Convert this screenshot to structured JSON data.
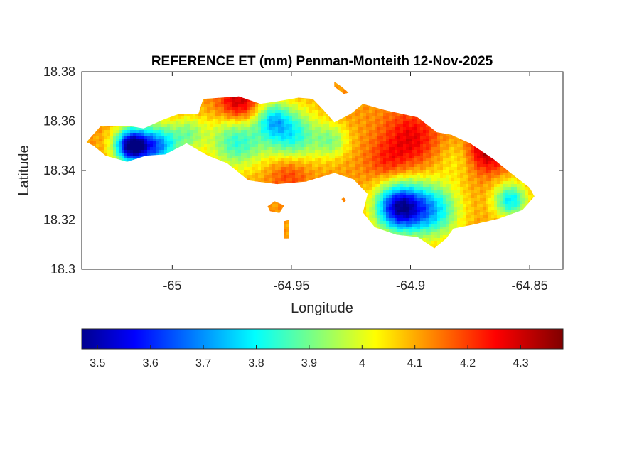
{
  "chart_data": {
    "type": "heatmap",
    "title": "REFERENCE ET (mm) Penman-Monteith 12-Nov-2025",
    "xlabel": "Longitude",
    "ylabel": "Latitude",
    "xlim": [
      -65.038,
      -64.836
    ],
    "ylim": [
      18.3,
      18.38
    ],
    "xticks": [
      -65,
      -64.95,
      -64.9,
      -64.85
    ],
    "xtick_labels": [
      "-65",
      "-64.95",
      "-64.9",
      "-64.85"
    ],
    "yticks": [
      18.3,
      18.32,
      18.34,
      18.36,
      18.38
    ],
    "ytick_labels": [
      "18.3",
      "18.32",
      "18.34",
      "18.36",
      "18.38"
    ],
    "grid": false,
    "colormap": "jet",
    "colorbar": {
      "location": "bottom",
      "range": [
        3.47,
        4.38
      ],
      "ticks": [
        3.5,
        3.6,
        3.7,
        3.8,
        3.9,
        4,
        4.1,
        4.2,
        4.3
      ],
      "tick_labels": [
        "3.5",
        "3.6",
        "3.7",
        "3.8",
        "3.9",
        "4",
        "4.1",
        "4.2",
        "4.3"
      ]
    },
    "outline": [
      [
        -65.036,
        18.3515
      ],
      [
        -65.03,
        18.358
      ],
      [
        -65.018,
        18.358
      ],
      [
        -65.012,
        18.357
      ],
      [
        -65.004,
        18.3605
      ],
      [
        -64.997,
        18.363
      ],
      [
        -64.989,
        18.363
      ],
      [
        -64.987,
        18.369
      ],
      [
        -64.972,
        18.37
      ],
      [
        -64.963,
        18.367
      ],
      [
        -64.956,
        18.368
      ],
      [
        -64.947,
        18.3695
      ],
      [
        -64.941,
        18.369
      ],
      [
        -64.937,
        18.365
      ],
      [
        -64.932,
        18.3595
      ],
      [
        -64.925,
        18.363
      ],
      [
        -64.92,
        18.367
      ],
      [
        -64.911,
        18.3645
      ],
      [
        -64.897,
        18.3615
      ],
      [
        -64.889,
        18.3555
      ],
      [
        -64.883,
        18.3545
      ],
      [
        -64.875,
        18.351
      ],
      [
        -64.865,
        18.3445
      ],
      [
        -64.858,
        18.339
      ],
      [
        -64.85,
        18.333
      ],
      [
        -64.848,
        18.3295
      ],
      [
        -64.853,
        18.324
      ],
      [
        -64.863,
        18.3205
      ],
      [
        -64.874,
        18.318
      ],
      [
        -64.882,
        18.3165
      ],
      [
        -64.885,
        18.3125
      ],
      [
        -64.89,
        18.3085
      ],
      [
        -64.897,
        18.313
      ],
      [
        -64.906,
        18.314
      ],
      [
        -64.915,
        18.317
      ],
      [
        -64.92,
        18.323
      ],
      [
        -64.918,
        18.3305
      ],
      [
        -64.924,
        18.3365
      ],
      [
        -64.932,
        18.339
      ],
      [
        -64.944,
        18.3355
      ],
      [
        -64.956,
        18.3345
      ],
      [
        -64.968,
        18.336
      ],
      [
        -64.977,
        18.343
      ],
      [
        -64.985,
        18.346
      ],
      [
        -64.994,
        18.351
      ],
      [
        -65.003,
        18.3465
      ],
      [
        -65.011,
        18.346
      ],
      [
        -65.019,
        18.3435
      ],
      [
        -65.028,
        18.346
      ],
      [
        -65.033,
        18.35
      ]
    ],
    "islands": [
      [
        [
          -64.96,
          18.3255
        ],
        [
          -64.957,
          18.3275
        ],
        [
          -64.953,
          18.3258
        ],
        [
          -64.955,
          18.3228
        ],
        [
          -64.959,
          18.3235
        ]
      ],
      [
        [
          -64.953,
          18.3195
        ],
        [
          -64.951,
          18.32
        ],
        [
          -64.951,
          18.3125
        ],
        [
          -64.953,
          18.3125
        ]
      ],
      [
        [
          -64.929,
          18.3285
        ],
        [
          -64.928,
          18.329
        ],
        [
          -64.927,
          18.328
        ],
        [
          -64.928,
          18.327
        ]
      ],
      [
        [
          -64.932,
          18.376
        ],
        [
          -64.929,
          18.374
        ],
        [
          -64.926,
          18.3715
        ],
        [
          -64.928,
          18.371
        ],
        [
          -64.932,
          18.374
        ]
      ]
    ],
    "values": {
      "base": 4.13,
      "field": [
        {
          "lon": -65.017,
          "lat": 18.35,
          "value": 3.47,
          "spread": 0.005
        },
        {
          "lon": -65.006,
          "lat": 18.35,
          "value": 3.72,
          "spread": 0.006
        },
        {
          "lon": -64.993,
          "lat": 18.355,
          "value": 3.95,
          "spread": 0.005
        },
        {
          "lon": -64.973,
          "lat": 18.352,
          "value": 3.85,
          "spread": 0.008
        },
        {
          "lon": -64.95,
          "lat": 18.354,
          "value": 3.82,
          "spread": 0.008
        },
        {
          "lon": -64.958,
          "lat": 18.361,
          "value": 3.9,
          "spread": 0.005
        },
        {
          "lon": -64.933,
          "lat": 18.352,
          "value": 3.95,
          "spread": 0.005
        },
        {
          "lon": -64.972,
          "lat": 18.367,
          "value": 4.35,
          "spread": 0.006
        },
        {
          "lon": -64.951,
          "lat": 18.34,
          "value": 4.25,
          "spread": 0.006
        },
        {
          "lon": -64.905,
          "lat": 18.325,
          "value": 3.55,
          "spread": 0.007
        },
        {
          "lon": -64.891,
          "lat": 18.324,
          "value": 3.78,
          "spread": 0.008
        },
        {
          "lon": -64.88,
          "lat": 18.345,
          "value": 4.05,
          "spread": 0.006
        },
        {
          "lon": -64.868,
          "lat": 18.348,
          "value": 4.35,
          "spread": 0.006
        },
        {
          "lon": -64.9,
          "lat": 18.353,
          "value": 4.28,
          "spread": 0.008
        },
        {
          "lon": -64.858,
          "lat": 18.328,
          "value": 3.8,
          "spread": 0.005
        },
        {
          "lon": -64.91,
          "lat": 18.343,
          "value": 4.22,
          "spread": 0.006
        }
      ]
    }
  }
}
